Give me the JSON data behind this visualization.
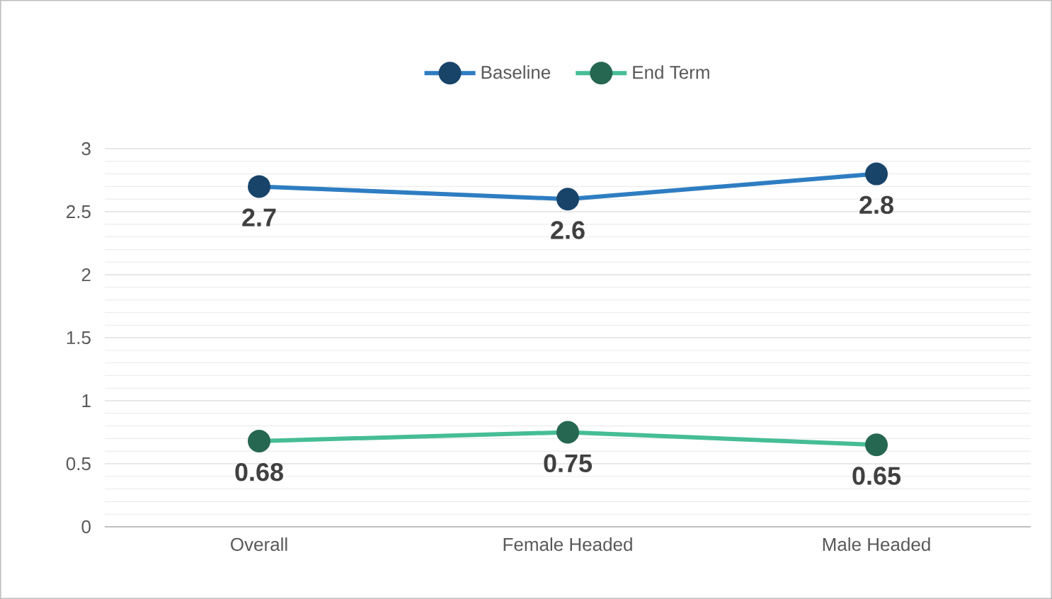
{
  "chart_data": {
    "type": "line",
    "categories": [
      "Overall",
      "Female Headed",
      "Male Headed"
    ],
    "series": [
      {
        "name": "Baseline",
        "color": "#2e7dc2",
        "values": [
          2.7,
          2.6,
          2.8
        ]
      },
      {
        "name": "End Term",
        "color": "#46bd96",
        "values": [
          0.68,
          0.75,
          0.65
        ]
      }
    ],
    "ylim": [
      0,
      3
    ],
    "yticks": [
      0,
      0.5,
      1,
      1.5,
      2,
      2.5,
      3
    ],
    "grid": "y",
    "legend": "top",
    "marker": "circle",
    "line_style": "solid",
    "data_labels": true
  }
}
